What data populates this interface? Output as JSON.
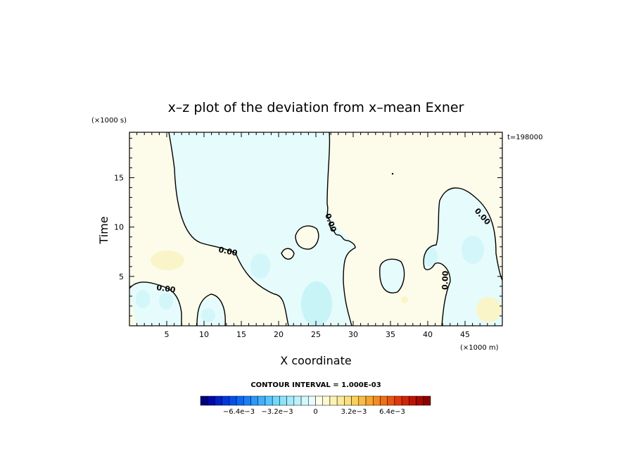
{
  "chart_data": {
    "type": "heatmap",
    "title": "x–z plot of the deviation from x–mean Exner",
    "xlabel": "X coordinate",
    "ylabel": "Time",
    "x_unit": "(×1000 m)",
    "y_unit": "(×1000 s)",
    "time_stamp": "t=198000",
    "xlim": [
      0,
      50
    ],
    "ylim": [
      0,
      19.6
    ],
    "x_ticks": [
      "5",
      "10",
      "15",
      "20",
      "25",
      "30",
      "35",
      "40",
      "45"
    ],
    "y_ticks": [
      "5",
      "10",
      "15"
    ],
    "contour_interval_text": "CONTOUR INTERVAL = 1.000E-03",
    "contour_labels": [
      "0.00",
      "0.00",
      "0.00",
      "0.00",
      "0.00"
    ],
    "colorbar": {
      "min": -0.0096,
      "max": 0.0096,
      "tick_labels": [
        "−6.4e−3",
        "−3.2e−3",
        "0",
        "3.2e−3",
        "6.4e−3"
      ],
      "tick_values": [
        -0.0064,
        -0.0032,
        0,
        0.0032,
        0.0064
      ]
    },
    "field_regions": [
      {
        "sign": "negative",
        "description_value": -0.0004
      },
      {
        "sign": "positive",
        "description_value": 0.0002
      }
    ],
    "grid": false,
    "legend": "colorbar-bottom"
  },
  "colors": {
    "negative_light": "#e6fbfb",
    "positive_light": "#fdfcea",
    "negative_mid": "#c8f4f8",
    "positive_mid": "#faf5c8"
  }
}
